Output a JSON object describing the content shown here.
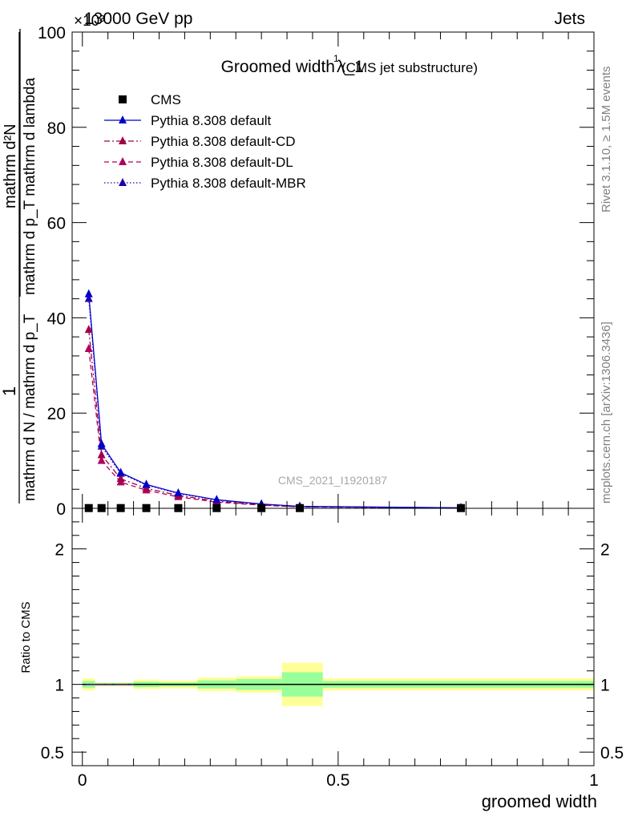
{
  "header": {
    "left": "13000 GeV pp",
    "right": "Jets",
    "exponent": "×10³"
  },
  "side_text": {
    "rivet": "Rivet 3.1.10, ≥ 1.5M events",
    "source": "mcplots.cern.ch [arXiv:1306.3436]"
  },
  "watermark": "CMS_2021_I1920187",
  "chart_data": [
    {
      "type": "line",
      "title": "Groomed width",
      "title_math": "λ_1",
      "title_sup": "1",
      "subtitle": "(CMS jet substructure)",
      "ylabel_num": "mathrm d²N",
      "ylabel_den": "mathrm d p_T mathrm d lambda",
      "ylabel_pre_num": "1",
      "ylabel_pre_den": "mathrm d N / mathrm d p_T",
      "xlim": [
        -0.02,
        1.0
      ],
      "ylim": [
        0,
        100
      ],
      "y_scale": 1000,
      "yticks": [
        0,
        20,
        40,
        60,
        80,
        100
      ],
      "ytick_labels": [
        "0",
        "20",
        "40",
        "60",
        "80",
        "100"
      ],
      "x": [
        0.0125,
        0.0375,
        0.075,
        0.125,
        0.1875,
        0.2625,
        0.35,
        0.425,
        0.74
      ],
      "series": [
        {
          "name": "CMS",
          "style": "data",
          "color": "#000000",
          "marker": "square",
          "values": [
            0.05,
            0.05,
            0.05,
            0.05,
            0.05,
            0.05,
            0.05,
            0.05,
            0.05
          ]
        },
        {
          "name": "Pythia 8.308 default",
          "style": "solid",
          "color": "#0000cc",
          "marker": "triangle",
          "values": [
            45,
            13.5,
            7.5,
            5.0,
            3.2,
            1.8,
            0.9,
            0.4,
            0.1
          ]
        },
        {
          "name": "Pythia 8.308 default-CD",
          "style": "dashdot",
          "color": "#a0004a",
          "marker": "triangle",
          "values": [
            37.5,
            11.2,
            6.2,
            4.2,
            2.7,
            1.5,
            0.7,
            0.35,
            0.08
          ]
        },
        {
          "name": "Pythia 8.308 default-DL",
          "style": "dashed",
          "color": "#b00060",
          "marker": "triangle",
          "values": [
            33.5,
            10.0,
            5.5,
            3.8,
            2.4,
            1.3,
            0.65,
            0.3,
            0.08
          ]
        },
        {
          "name": "Pythia 8.308 default-MBR",
          "style": "dotted",
          "color": "#2200aa",
          "marker": "triangle",
          "values": [
            44,
            13.0,
            7.3,
            4.9,
            3.1,
            1.75,
            0.85,
            0.4,
            0.1
          ]
        }
      ]
    },
    {
      "type": "area",
      "ylabel": "Ratio to CMS",
      "xlabel": "groomed width",
      "xlim": [
        -0.02,
        1.0
      ],
      "ylim": [
        0.4,
        2.3
      ],
      "xticks": [
        0,
        0.5,
        1
      ],
      "xtick_labels": [
        "0",
        "0.5",
        "1"
      ],
      "yticks": [
        0.5,
        1,
        2
      ],
      "ytick_labels": [
        "0.5",
        "1",
        "2"
      ],
      "bins": [
        {
          "lo": 0.0,
          "hi": 0.025,
          "stat": 0.025,
          "total": 0.045
        },
        {
          "lo": 0.025,
          "hi": 0.1,
          "stat": 0.01,
          "total": 0.015
        },
        {
          "lo": 0.1,
          "hi": 0.15,
          "stat": 0.02,
          "total": 0.035
        },
        {
          "lo": 0.15,
          "hi": 0.225,
          "stat": 0.015,
          "total": 0.03
        },
        {
          "lo": 0.225,
          "hi": 0.3,
          "stat": 0.03,
          "total": 0.05
        },
        {
          "lo": 0.3,
          "hi": 0.39,
          "stat": 0.04,
          "total": 0.06
        },
        {
          "lo": 0.39,
          "hi": 0.47,
          "stat": 0.09,
          "total": 0.16
        },
        {
          "lo": 0.47,
          "hi": 1.0,
          "stat": 0.025,
          "total": 0.045
        }
      ],
      "colors": {
        "stat": "#99ff99",
        "total": "#ffff99",
        "ref": "#000000"
      }
    }
  ]
}
